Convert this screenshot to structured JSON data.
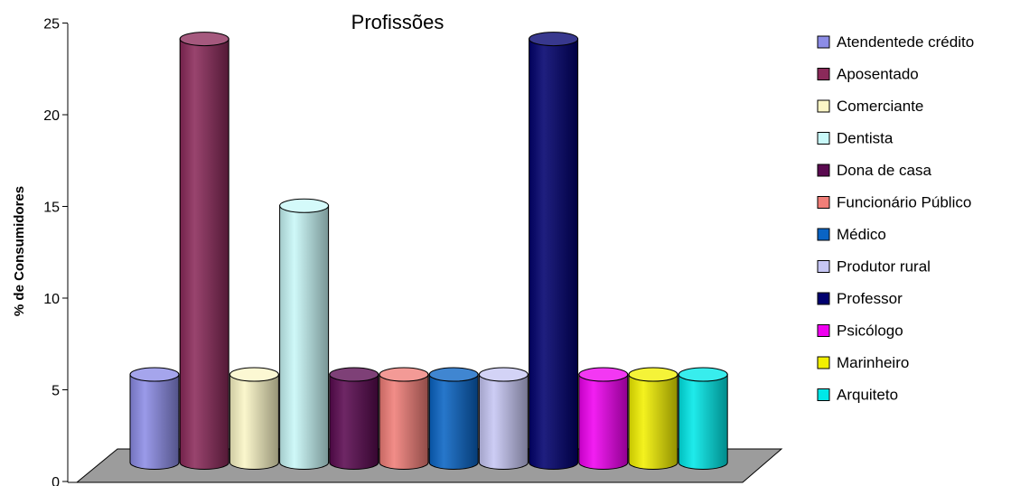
{
  "chart_data": {
    "type": "bar",
    "style": "3d-cylinder",
    "title": "Profissões",
    "xlabel": "",
    "ylabel": "% de Consumidores",
    "ylim": [
      0,
      25
    ],
    "yticks": [
      0,
      5,
      10,
      15,
      20,
      25
    ],
    "grid": false,
    "legend_position": "right",
    "categories": [
      "Atendentede crédito",
      "Aposentado",
      "Comerciante",
      "Dentista",
      "Dona de casa",
      "Funcionário Público",
      "Médico",
      "Produtor rural",
      "Professor",
      "Psicólogo",
      "Marinheiro",
      "Arquiteto"
    ],
    "values": [
      4.8,
      23.1,
      4.8,
      14.0,
      4.8,
      4.8,
      4.8,
      4.8,
      23.1,
      4.8,
      4.8,
      4.8
    ],
    "colors": [
      "#8c8ce6",
      "#8b2a5a",
      "#fbf6c6",
      "#c8f8f8",
      "#5a0a50",
      "#f07e78",
      "#0a64c4",
      "#c6c6f4",
      "#00006e",
      "#f000f0",
      "#f2f000",
      "#00e8e8"
    ]
  }
}
